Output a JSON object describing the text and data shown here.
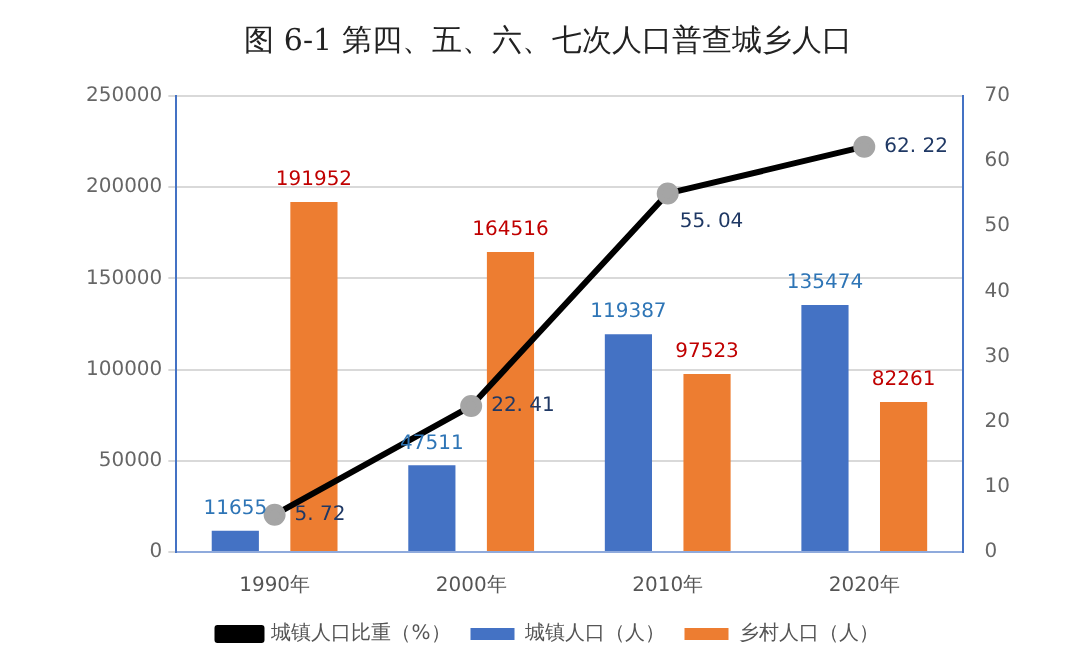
{
  "chart_data": {
    "type": "bar",
    "title": "图 6-1 第四、五、六、七次人口普查城乡人口",
    "categories": [
      "1990年",
      "2000年",
      "2010年",
      "2020年"
    ],
    "series": [
      {
        "name": "城镇人口（人）",
        "color": "#4472c4",
        "values": [
          11655,
          47511,
          119387,
          135474
        ]
      },
      {
        "name": "乡村人口（人）",
        "color": "#ed7d31",
        "values": [
          191952,
          164516,
          97523,
          82261
        ]
      },
      {
        "name": "城镇人口比重（%）",
        "type": "line",
        "axis": "y2",
        "color": "#000000",
        "values": [
          5.72,
          22.41,
          55.04,
          62.22
        ]
      }
    ],
    "ylim": [
      0,
      250000
    ],
    "yticks": [
      0,
      50000,
      100000,
      150000,
      200000,
      250000
    ],
    "y2lim": [
      0,
      70
    ],
    "y2ticks": [
      0,
      10,
      20,
      30,
      40,
      50,
      60,
      70
    ],
    "grid": "y",
    "legend": "bottom",
    "marker": "circle",
    "line_style": "solid",
    "data_labels": true
  }
}
